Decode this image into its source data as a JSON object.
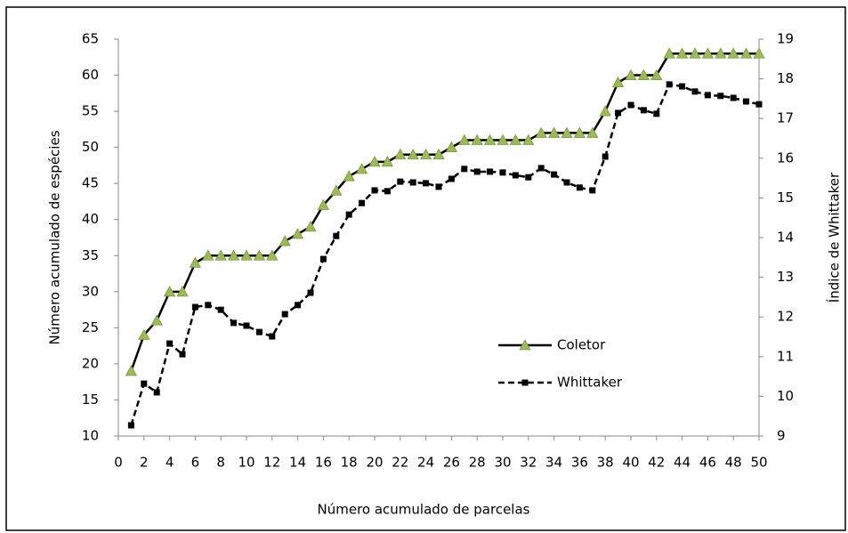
{
  "chart_data": {
    "type": "line",
    "x_label": "Número acumulado de parcelas",
    "y_label": "Número acumulado de espécies",
    "y2_label": "Índice de Whittaker",
    "x": [
      1,
      2,
      3,
      4,
      5,
      6,
      7,
      8,
      9,
      10,
      11,
      12,
      13,
      14,
      15,
      16,
      17,
      18,
      19,
      20,
      21,
      22,
      23,
      24,
      25,
      26,
      27,
      28,
      29,
      30,
      31,
      32,
      33,
      34,
      35,
      36,
      37,
      38,
      39,
      40,
      41,
      42,
      43,
      44,
      45,
      46,
      47,
      48,
      49,
      50
    ],
    "xlim": [
      0,
      50
    ],
    "xticks": [
      0,
      2,
      4,
      6,
      8,
      10,
      12,
      14,
      16,
      18,
      20,
      22,
      24,
      26,
      28,
      30,
      32,
      34,
      36,
      38,
      40,
      42,
      44,
      46,
      48,
      50
    ],
    "ylim": [
      10,
      65
    ],
    "yticks": [
      10,
      15,
      20,
      25,
      30,
      35,
      40,
      45,
      50,
      55,
      60,
      65
    ],
    "y2lim": [
      9,
      19
    ],
    "y2ticks": [
      9,
      10,
      11,
      12,
      13,
      14,
      15,
      16,
      17,
      18,
      19
    ],
    "grid": false,
    "legend_position": "lower-center",
    "series": [
      {
        "name": "Coletor",
        "color": "#000000",
        "marker": "triangle",
        "marker_color": "#9bbb59",
        "line_style": "solid",
        "axis": "y",
        "values": [
          19,
          24,
          26,
          30,
          30,
          34,
          35,
          35,
          35,
          35,
          35,
          35,
          37,
          38,
          39,
          42,
          44,
          46,
          47,
          48,
          48,
          49,
          49,
          49,
          49,
          50,
          51,
          51,
          51,
          51,
          51,
          51,
          52,
          52,
          52,
          52,
          52,
          55,
          59,
          60,
          60,
          60,
          63,
          63,
          63,
          63,
          63,
          63,
          63,
          63
        ]
      },
      {
        "name": "Whittaker",
        "color": "#000000",
        "marker": "square",
        "marker_color": "#000000",
        "line_style": "dashed",
        "axis": "y2",
        "values": [
          9.27,
          10.32,
          10.1,
          11.33,
          11.06,
          12.25,
          12.3,
          12.18,
          11.85,
          11.78,
          11.62,
          11.51,
          12.07,
          12.3,
          12.61,
          13.46,
          14.04,
          14.58,
          14.87,
          15.19,
          15.17,
          15.41,
          15.39,
          15.37,
          15.28,
          15.48,
          15.73,
          15.66,
          15.66,
          15.64,
          15.57,
          15.52,
          15.75,
          15.59,
          15.39,
          15.26,
          15.19,
          16.04,
          17.14,
          17.34,
          17.21,
          17.12,
          17.86,
          17.81,
          17.68,
          17.59,
          17.57,
          17.52,
          17.43,
          17.36
        ]
      }
    ]
  }
}
